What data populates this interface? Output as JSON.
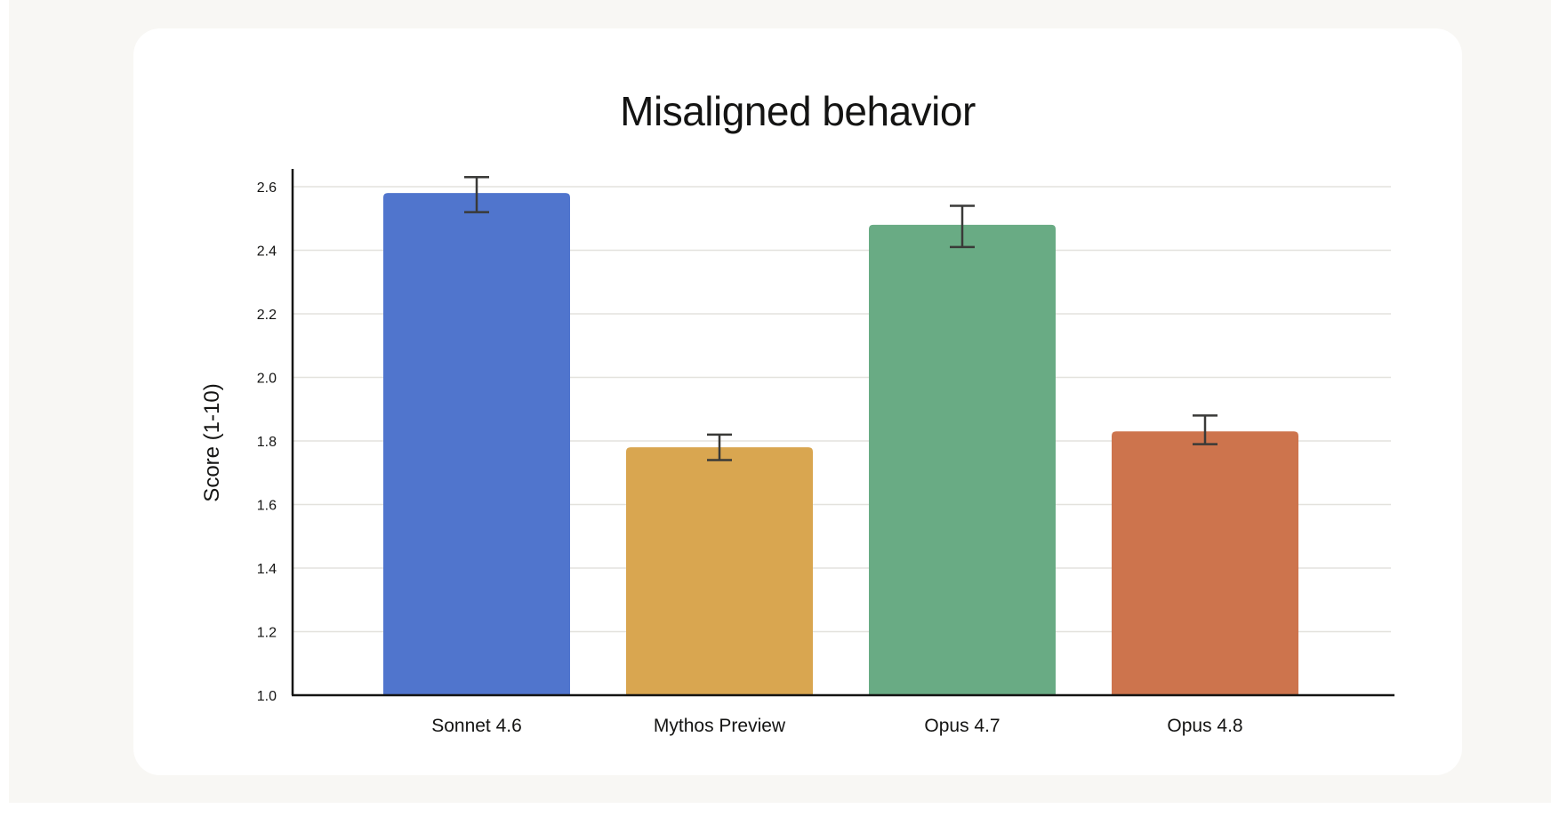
{
  "chart_data": {
    "type": "bar",
    "title": "Misaligned behavior",
    "xlabel": "",
    "ylabel": "Score (1-10)",
    "ylim": [
      1.0,
      2.6
    ],
    "yticks": [
      "1.0",
      "1.2",
      "1.4",
      "1.6",
      "1.8",
      "2.0",
      "2.2",
      "2.4",
      "2.6"
    ],
    "grid": true,
    "legend": "none",
    "categories": [
      "Sonnet 4.6",
      "Mythos Preview",
      "Opus 4.7",
      "Opus 4.8"
    ],
    "values": [
      2.58,
      1.78,
      2.48,
      1.83
    ],
    "error_low": [
      2.52,
      1.74,
      2.41,
      1.79
    ],
    "error_high": [
      2.63,
      1.82,
      2.54,
      1.88
    ],
    "colors": [
      "#5075cd",
      "#d9a650",
      "#69ab84",
      "#cd744d"
    ]
  }
}
